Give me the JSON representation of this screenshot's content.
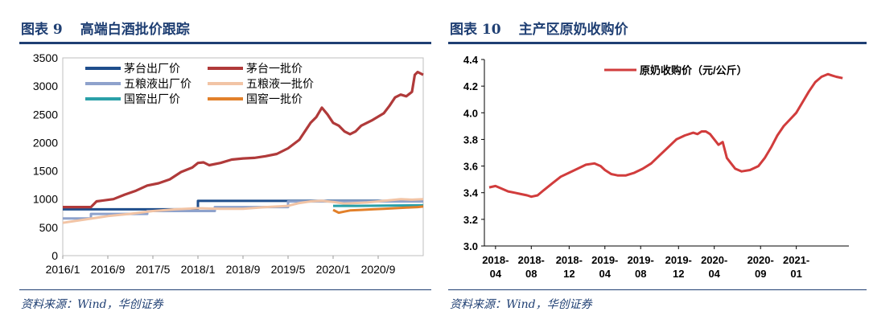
{
  "left": {
    "title_num": "图表 9",
    "title_text": "高端白酒批价跟踪",
    "source": "资料来源：Wind，华创证券"
  },
  "right": {
    "title_num": "图表 10",
    "title_text": "主产区原奶收购价",
    "source": "资料来源：Wind，华创证券"
  },
  "chart_data": [
    {
      "type": "line",
      "title": "高端白酒批价跟踪",
      "xlabel": "",
      "ylabel": "",
      "ylim": [
        0,
        3500
      ],
      "yticks": [
        "3500",
        "3000",
        "2500",
        "2000",
        "1500",
        "1000",
        "500",
        "0"
      ],
      "x_tick_labels": [
        "2016/1",
        "2016/9",
        "2017/5",
        "2018/1",
        "2018/9",
        "2019/5",
        "2020/1",
        "2020/9"
      ],
      "x_tick_months": [
        0,
        8,
        16,
        24,
        32,
        40,
        48,
        56
      ],
      "x_range_months": [
        0,
        64
      ],
      "legend_position": "top-left",
      "series": [
        {
          "name": "茅台出厂价",
          "color": "#1f4e8c",
          "points": [
            [
              0,
              819
            ],
            [
              24,
              819
            ],
            [
              24,
              969
            ],
            [
              64,
              969
            ]
          ]
        },
        {
          "name": "茅台一批价",
          "color": "#b03a3a",
          "points": [
            [
              0,
              860
            ],
            [
              5,
              860
            ],
            [
              6,
              960
            ],
            [
              9,
              1000
            ],
            [
              11,
              1080
            ],
            [
              13,
              1150
            ],
            [
              15,
              1240
            ],
            [
              17,
              1280
            ],
            [
              19,
              1350
            ],
            [
              21,
              1480
            ],
            [
              23,
              1560
            ],
            [
              24,
              1640
            ],
            [
              25,
              1650
            ],
            [
              26,
              1600
            ],
            [
              28,
              1640
            ],
            [
              30,
              1700
            ],
            [
              32,
              1720
            ],
            [
              34,
              1730
            ],
            [
              36,
              1760
            ],
            [
              38,
              1800
            ],
            [
              40,
              1900
            ],
            [
              42,
              2050
            ],
            [
              44,
              2350
            ],
            [
              45,
              2450
            ],
            [
              46,
              2620
            ],
            [
              47,
              2500
            ],
            [
              48,
              2350
            ],
            [
              49,
              2300
            ],
            [
              50,
              2200
            ],
            [
              51,
              2150
            ],
            [
              52,
              2200
            ],
            [
              53,
              2300
            ],
            [
              55,
              2400
            ],
            [
              57,
              2520
            ],
            [
              58,
              2650
            ],
            [
              59,
              2800
            ],
            [
              60,
              2850
            ],
            [
              61,
              2820
            ],
            [
              62,
              2900
            ],
            [
              62.5,
              3200
            ],
            [
              63,
              3250
            ],
            [
              64,
              3200
            ]
          ]
        },
        {
          "name": "五粮液出厂价",
          "color": "#8ea2cc",
          "points": [
            [
              0,
              659
            ],
            [
              5,
              659
            ],
            [
              5,
              739
            ],
            [
              15,
              739
            ],
            [
              15,
              789
            ],
            [
              27,
              789
            ],
            [
              27,
              859
            ],
            [
              40,
              859
            ],
            [
              40,
              959
            ],
            [
              64,
              959
            ]
          ]
        },
        {
          "name": "五粮液一批价",
          "color": "#f2c4a5",
          "points": [
            [
              0,
              580
            ],
            [
              4,
              640
            ],
            [
              8,
              700
            ],
            [
              12,
              740
            ],
            [
              16,
              790
            ],
            [
              20,
              820
            ],
            [
              24,
              840
            ],
            [
              28,
              830
            ],
            [
              32,
              830
            ],
            [
              36,
              860
            ],
            [
              40,
              880
            ],
            [
              42,
              930
            ],
            [
              44,
              960
            ],
            [
              46,
              970
            ],
            [
              48,
              950
            ],
            [
              50,
              920
            ],
            [
              52,
              930
            ],
            [
              54,
              940
            ],
            [
              56,
              960
            ],
            [
              58,
              980
            ],
            [
              60,
              1000
            ],
            [
              62,
              990
            ],
            [
              64,
              1000
            ]
          ]
        },
        {
          "name": "国窖出厂价",
          "color": "#2aa0a8",
          "points": [
            [
              48,
              880
            ],
            [
              52,
              880
            ],
            [
              52,
              880
            ],
            [
              64,
              890
            ]
          ]
        },
        {
          "name": "国窖一批价",
          "color": "#e2802a",
          "points": [
            [
              48,
              810
            ],
            [
              49,
              760
            ],
            [
              50,
              780
            ],
            [
              51,
              800
            ],
            [
              53,
              810
            ],
            [
              55,
              820
            ],
            [
              57,
              830
            ],
            [
              59,
              840
            ],
            [
              61,
              850
            ],
            [
              63,
              860
            ],
            [
              64,
              870
            ]
          ]
        }
      ]
    },
    {
      "type": "line",
      "title": "主产区原奶收购价",
      "xlabel": "",
      "ylabel": "",
      "ylim": [
        3.0,
        4.4
      ],
      "yticks": [
        "4.4",
        "4.2",
        "4.0",
        "3.8",
        "3.6",
        "3.4",
        "3.2",
        "3.0"
      ],
      "x_tick_labels": [
        [
          "2018-",
          "04"
        ],
        [
          "2018-",
          "08"
        ],
        [
          "2018-",
          "12"
        ],
        [
          "2019-",
          "04"
        ],
        [
          "2019-",
          "08"
        ],
        [
          "2019-",
          "12"
        ],
        [
          "2020-",
          "04"
        ],
        [
          "2020-",
          "09"
        ],
        [
          "2021-",
          "01"
        ]
      ],
      "x_tick_weeks": [
        0,
        17,
        35,
        52,
        69,
        87,
        104,
        126,
        143
      ],
      "x_range_weeks": [
        -3,
        160
      ],
      "legend_position": "top-center",
      "series": [
        {
          "name": "原奶收购价（元/公斤）",
          "color": "#d13c3c",
          "points": [
            [
              -3,
              3.44
            ],
            [
              0,
              3.45
            ],
            [
              3,
              3.43
            ],
            [
              6,
              3.41
            ],
            [
              9,
              3.4
            ],
            [
              12,
              3.39
            ],
            [
              15,
              3.38
            ],
            [
              17,
              3.37
            ],
            [
              20,
              3.38
            ],
            [
              23,
              3.42
            ],
            [
              27,
              3.47
            ],
            [
              31,
              3.52
            ],
            [
              35,
              3.55
            ],
            [
              39,
              3.58
            ],
            [
              43,
              3.61
            ],
            [
              47,
              3.62
            ],
            [
              50,
              3.6
            ],
            [
              52,
              3.57
            ],
            [
              55,
              3.54
            ],
            [
              58,
              3.53
            ],
            [
              62,
              3.53
            ],
            [
              66,
              3.55
            ],
            [
              70,
              3.58
            ],
            [
              74,
              3.62
            ],
            [
              78,
              3.68
            ],
            [
              82,
              3.74
            ],
            [
              86,
              3.8
            ],
            [
              90,
              3.83
            ],
            [
              94,
              3.85
            ],
            [
              96,
              3.84
            ],
            [
              98,
              3.86
            ],
            [
              100,
              3.86
            ],
            [
              102,
              3.84
            ],
            [
              104,
              3.8
            ],
            [
              106,
              3.76
            ],
            [
              108,
              3.78
            ],
            [
              110,
              3.66
            ],
            [
              112,
              3.62
            ],
            [
              114,
              3.58
            ],
            [
              117,
              3.56
            ],
            [
              121,
              3.57
            ],
            [
              125,
              3.6
            ],
            [
              128,
              3.66
            ],
            [
              131,
              3.74
            ],
            [
              134,
              3.83
            ],
            [
              137,
              3.9
            ],
            [
              140,
              3.95
            ],
            [
              143,
              4.0
            ],
            [
              146,
              4.08
            ],
            [
              149,
              4.16
            ],
            [
              152,
              4.23
            ],
            [
              155,
              4.27
            ],
            [
              158,
              4.29
            ],
            [
              160,
              4.28
            ],
            [
              162,
              4.27
            ],
            [
              165,
              4.26
            ]
          ]
        }
      ]
    }
  ]
}
